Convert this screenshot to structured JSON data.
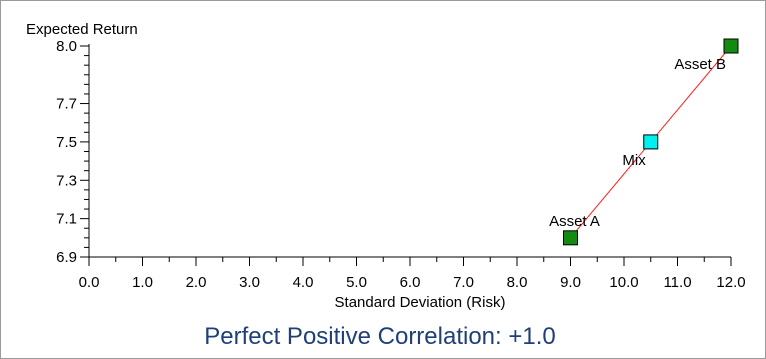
{
  "chart_data": {
    "type": "scatter",
    "title": "Perfect Positive Correlation: +1.0",
    "xlabel": "Standard Deviation (Risk)",
    "ylabel": "Expected Return",
    "xlim": [
      0,
      12
    ],
    "ylim": [
      6.9,
      8.0
    ],
    "x_ticks": [
      "0.0",
      "1.0",
      "2.0",
      "3.0",
      "4.0",
      "5.0",
      "6.0",
      "7.0",
      "8.0",
      "9.0",
      "10.0",
      "11.0",
      "12.0"
    ],
    "y_ticks": [
      {
        "value": 8.0,
        "label": "8.0"
      },
      {
        "value": 7.7,
        "label": "7.7"
      },
      {
        "value": 7.5,
        "label": "7.5"
      },
      {
        "value": 7.3,
        "label": "7.3"
      },
      {
        "value": 7.1,
        "label": "7.1"
      },
      {
        "value": 6.9,
        "label": "6.9"
      }
    ],
    "line": {
      "color": "#ff2020",
      "points": [
        [
          9.0,
          7.0
        ],
        [
          12.0,
          8.0
        ]
      ]
    },
    "points": [
      {
        "label": "Asset A",
        "x": 9.0,
        "y": 7.0,
        "color": "#138b13",
        "label_pos": "above"
      },
      {
        "label": "Mix",
        "x": 10.5,
        "y": 7.5,
        "color": "#00f0f0",
        "label_pos": "below-left"
      },
      {
        "label": "Asset B",
        "x": 12.0,
        "y": 8.0,
        "color": "#138b13",
        "label_pos": "below-left"
      }
    ],
    "grid": false,
    "legend": "none"
  }
}
